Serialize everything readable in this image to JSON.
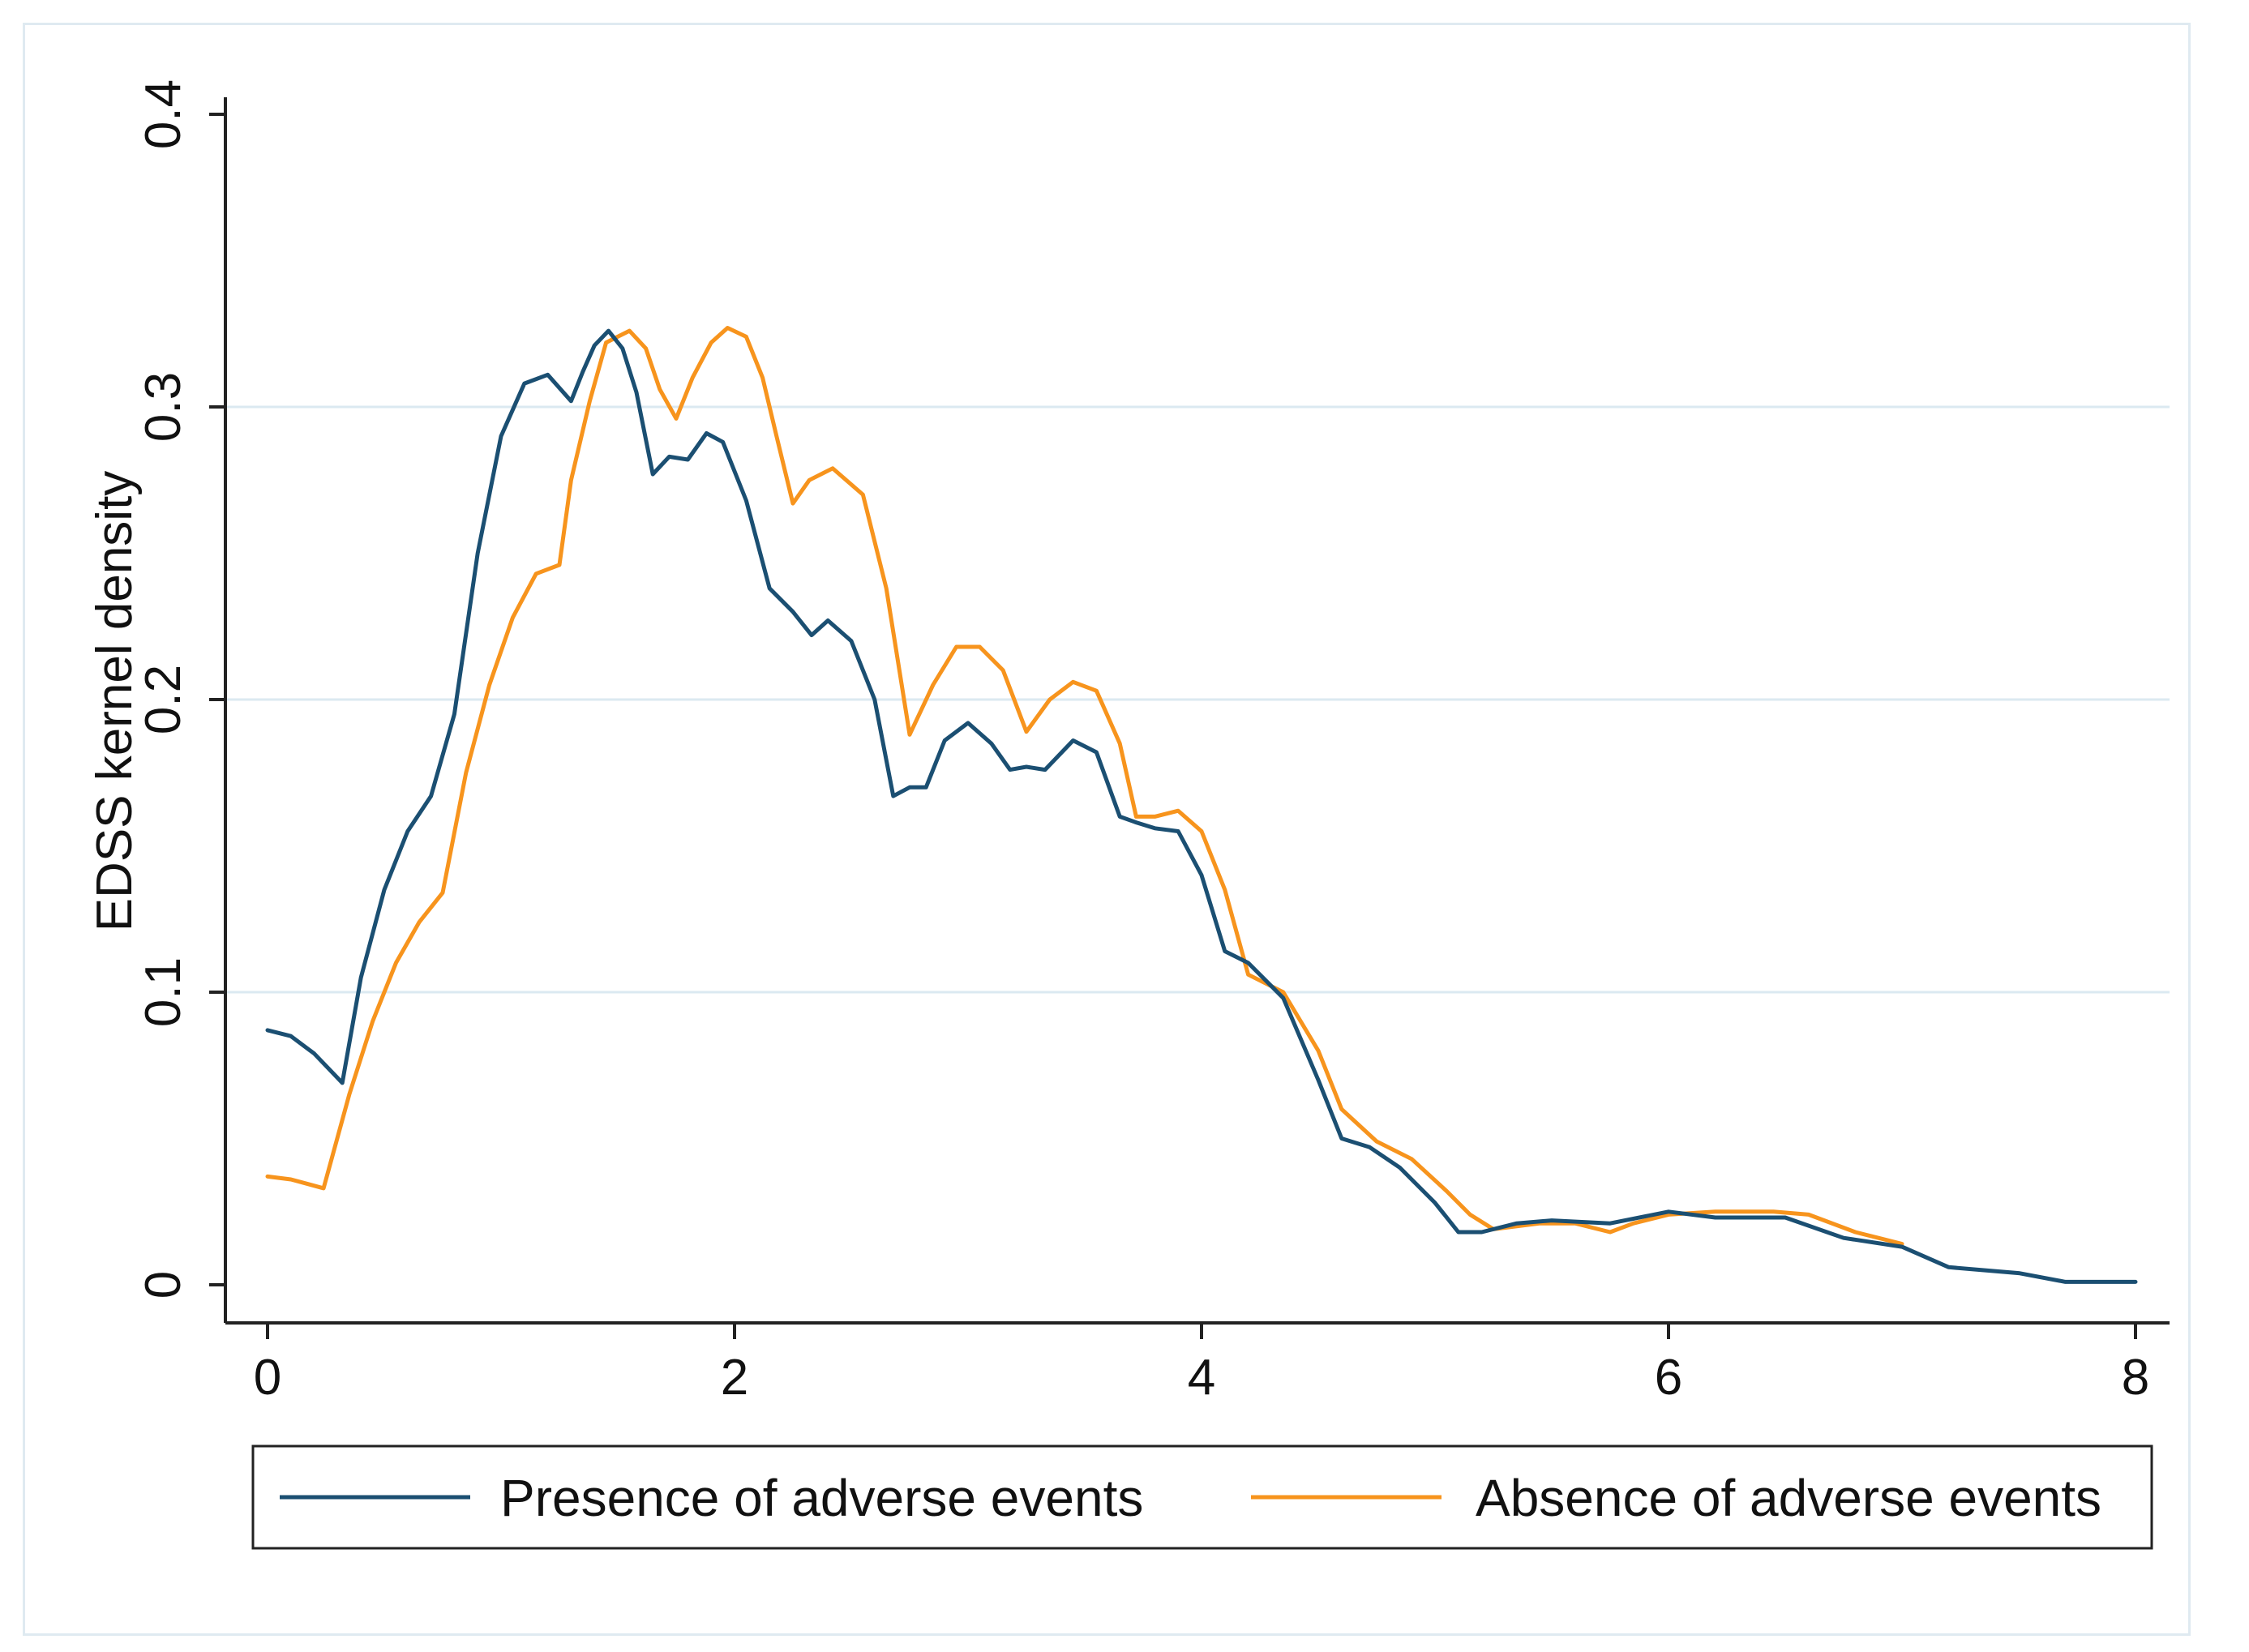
{
  "chart_data": {
    "type": "line",
    "title": "",
    "xlabel": "",
    "ylabel": "EDSS kernel density",
    "xlim": [
      0,
      8
    ],
    "ylim": [
      0,
      0.4
    ],
    "xticks": [
      0,
      2,
      4,
      6,
      8
    ],
    "xtick_labels": [
      "0",
      "2",
      "4",
      "6",
      "8"
    ],
    "yticks": [
      0,
      0.1,
      0.2,
      0.3,
      0.4
    ],
    "ytick_labels": [
      "0",
      "0.1",
      "0.2",
      "0.3",
      "0.4"
    ],
    "grid": "horizontal",
    "legend_position": "bottom",
    "colors": {
      "presence": "#1b4f72",
      "absence": "#f7941d",
      "grid": "#dbe9f1",
      "axis": "#222222"
    },
    "series": [
      {
        "name": "Presence of adverse events",
        "color": "#1b4f72",
        "x": [
          0,
          0.1,
          0.2,
          0.32,
          0.4,
          0.5,
          0.6,
          0.7,
          0.8,
          0.9,
          1.0,
          1.1,
          1.2,
          1.3,
          1.35,
          1.4,
          1.46,
          1.52,
          1.58,
          1.65,
          1.72,
          1.8,
          1.88,
          1.95,
          2.05,
          2.15,
          2.25,
          2.33,
          2.4,
          2.5,
          2.6,
          2.68,
          2.75,
          2.82,
          2.9,
          3.0,
          3.1,
          3.18,
          3.25,
          3.33,
          3.45,
          3.55,
          3.65,
          3.72,
          3.8,
          3.9,
          4.0,
          4.1,
          4.2,
          4.35,
          4.5,
          4.6,
          4.72,
          4.85,
          5.0,
          5.1,
          5.2,
          5.35,
          5.5,
          5.75,
          6.0,
          6.2,
          6.5,
          6.75,
          7.0,
          7.2,
          7.5,
          7.7,
          8.0
        ],
        "values": [
          0.087,
          0.085,
          0.079,
          0.069,
          0.105,
          0.135,
          0.155,
          0.167,
          0.195,
          0.25,
          0.29,
          0.308,
          0.311,
          0.302,
          0.312,
          0.321,
          0.326,
          0.32,
          0.305,
          0.277,
          0.283,
          0.282,
          0.291,
          0.288,
          0.268,
          0.238,
          0.23,
          0.222,
          0.227,
          0.22,
          0.2,
          0.167,
          0.17,
          0.17,
          0.186,
          0.192,
          0.185,
          0.176,
          0.177,
          0.176,
          0.186,
          0.182,
          0.16,
          0.158,
          0.156,
          0.155,
          0.14,
          0.114,
          0.11,
          0.098,
          0.07,
          0.05,
          0.047,
          0.04,
          0.028,
          0.018,
          0.018,
          0.021,
          0.022,
          0.021,
          0.025,
          0.023,
          0.023,
          0.016,
          0.013,
          0.006,
          0.004,
          0.001,
          0.001
        ]
      },
      {
        "name": "Absence of adverse events",
        "color": "#f7941d",
        "x": [
          0,
          0.1,
          0.24,
          0.35,
          0.45,
          0.55,
          0.65,
          0.75,
          0.85,
          0.95,
          1.05,
          1.15,
          1.25,
          1.3,
          1.38,
          1.45,
          1.55,
          1.62,
          1.68,
          1.75,
          1.82,
          1.9,
          1.97,
          2.05,
          2.12,
          2.18,
          2.25,
          2.32,
          2.42,
          2.55,
          2.65,
          2.75,
          2.85,
          2.95,
          3.05,
          3.15,
          3.25,
          3.35,
          3.45,
          3.55,
          3.65,
          3.72,
          3.8,
          3.9,
          4.0,
          4.1,
          4.2,
          4.35,
          4.5,
          4.6,
          4.75,
          4.9,
          5.05,
          5.15,
          5.25,
          5.45,
          5.6,
          5.75,
          5.85,
          6.0,
          6.2,
          6.45,
          6.6,
          6.8,
          7.0
        ],
        "values": [
          0.037,
          0.036,
          0.033,
          0.065,
          0.09,
          0.11,
          0.124,
          0.134,
          0.175,
          0.205,
          0.228,
          0.243,
          0.246,
          0.275,
          0.302,
          0.322,
          0.326,
          0.32,
          0.306,
          0.296,
          0.31,
          0.322,
          0.327,
          0.324,
          0.31,
          0.29,
          0.267,
          0.275,
          0.279,
          0.27,
          0.238,
          0.188,
          0.205,
          0.218,
          0.218,
          0.21,
          0.189,
          0.2,
          0.206,
          0.203,
          0.185,
          0.16,
          0.16,
          0.162,
          0.155,
          0.135,
          0.106,
          0.1,
          0.08,
          0.06,
          0.049,
          0.043,
          0.032,
          0.024,
          0.019,
          0.021,
          0.021,
          0.018,
          0.021,
          0.024,
          0.025,
          0.025,
          0.024,
          0.018,
          0.014
        ]
      }
    ]
  },
  "legend": {
    "presence_label": "Presence of adverse events",
    "absence_label": "Absence of adverse events"
  }
}
